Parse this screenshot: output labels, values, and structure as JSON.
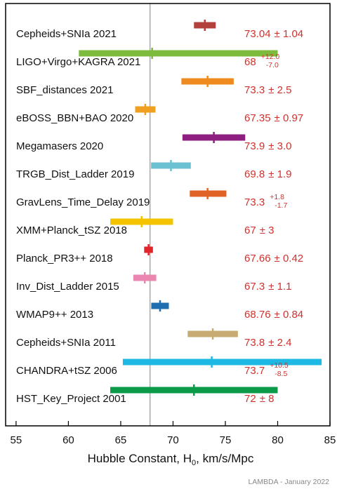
{
  "chart_data": {
    "type": "forest",
    "xlabel": "Hubble Constant, H",
    "xlabel_sub": "0",
    "xlabel_units": ", km/s/Mpc",
    "xlim": [
      54,
      85
    ],
    "xticks": [
      55,
      60,
      65,
      70,
      75,
      80,
      85
    ],
    "reference_line": 67.8,
    "credit": "LAMBDA - January 2022",
    "points": [
      {
        "label": "Cepheids+SNIa 2021",
        "value": 73.04,
        "lo": 72.0,
        "hi": 74.08,
        "color": "#b3403a",
        "value_text": "73.04",
        "err_text": "± 1.04"
      },
      {
        "label": "LIGO+Virgo+KAGRA 2021",
        "value": 68,
        "lo": 61.0,
        "hi": 80.0,
        "color": "#7dbb3c",
        "value_text": "68",
        "err_plus": "+12.0",
        "err_minus": "-7.0"
      },
      {
        "label": "SBF_distances 2021",
        "value": 73.3,
        "lo": 70.8,
        "hi": 75.8,
        "color": "#ef8a1e",
        "value_text": "73.3",
        "err_text": "± 2.5"
      },
      {
        "label": "eBOSS_BBN+BAO 2020",
        "value": 67.35,
        "lo": 66.38,
        "hi": 68.32,
        "color": "#f0a020",
        "value_text": "67.35",
        "err_text": "± 0.97"
      },
      {
        "label": "Megamasers 2020",
        "value": 73.9,
        "lo": 70.9,
        "hi": 76.9,
        "color": "#8e1f80",
        "value_text": "73.9",
        "err_text": "± 3.0"
      },
      {
        "label": "TRGB_Dist_Ladder 2019",
        "value": 69.8,
        "lo": 67.9,
        "hi": 71.7,
        "color": "#6cc1d0",
        "value_text": "69.8",
        "err_text": "± 1.9"
      },
      {
        "label": "GravLens_Time_Delay 2019",
        "value": 73.3,
        "lo": 71.6,
        "hi": 75.1,
        "color": "#e06224",
        "value_text": "73.3",
        "err_plus": "+1.8",
        "err_minus": "-1.7"
      },
      {
        "label": "XMM+Planck_tSZ 2018",
        "value": 67,
        "lo": 64.0,
        "hi": 70.0,
        "color": "#f5c400",
        "value_text": "67",
        "err_text": "± 3"
      },
      {
        "label": "Planck_PR3++ 2018",
        "value": 67.66,
        "lo": 67.24,
        "hi": 68.08,
        "color": "#e0262a",
        "value_text": "67.66",
        "err_text": "± 0.42"
      },
      {
        "label": "Inv_Dist_Ladder 2015",
        "value": 67.3,
        "lo": 66.2,
        "hi": 68.4,
        "color": "#ea86b0",
        "value_text": "67.3",
        "err_text": "± 1.1"
      },
      {
        "label": "WMAP9++ 2013",
        "value": 68.76,
        "lo": 67.92,
        "hi": 69.6,
        "color": "#1f6fb0",
        "value_text": "68.76",
        "err_text": "± 0.84"
      },
      {
        "label": "Cepheids+SNIa 2011",
        "value": 73.8,
        "lo": 71.4,
        "hi": 76.2,
        "color": "#c8ab72",
        "value_text": "73.8",
        "err_text": "± 2.4"
      },
      {
        "label": "CHANDRA+tSZ 2006",
        "value": 73.7,
        "lo": 65.2,
        "hi": 84.2,
        "color": "#1eb8e4",
        "value_text": "73.7",
        "err_plus": "+10.5",
        "err_minus": "-8.5"
      },
      {
        "label": "HST_Key_Project 2001",
        "value": 72,
        "lo": 64.0,
        "hi": 80.0,
        "color": "#0a9a48",
        "value_text": "72",
        "err_text": "± 8"
      }
    ]
  }
}
